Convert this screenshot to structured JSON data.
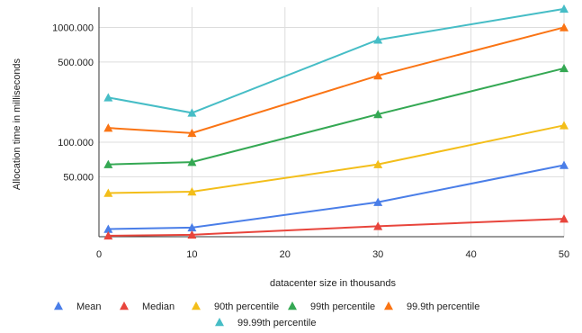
{
  "chart_data": {
    "type": "line",
    "title": "",
    "xlabel": "datacenter size in thousands",
    "ylabel": "Allocation time in milliseconds",
    "x": [
      1,
      10,
      30,
      50
    ],
    "xlim": [
      0,
      50
    ],
    "xticks": [
      "0",
      "10",
      "20",
      "30",
      "40",
      "50"
    ],
    "yscale": "log",
    "ylim": [
      15,
      1500
    ],
    "yticks": [
      {
        "value": 50,
        "label": "50.000"
      },
      {
        "value": 100,
        "label": "100.000"
      },
      {
        "value": 500,
        "label": "500.000"
      },
      {
        "value": 1000,
        "label": "1000.000"
      }
    ],
    "grid": true,
    "legend_position": "bottom",
    "series": [
      {
        "name": "Mean",
        "color": "#4a7ee8",
        "values": [
          17.5,
          18,
          30,
          63
        ]
      },
      {
        "name": "Median",
        "color": "#e8453c",
        "values": [
          15.3,
          15.6,
          18.5,
          21.5
        ]
      },
      {
        "name": "90th percentile",
        "color": "#f3be1a",
        "values": [
          36,
          37,
          64,
          140
        ]
      },
      {
        "name": "99th percentile",
        "color": "#34a853",
        "values": [
          64,
          67,
          175,
          440
        ]
      },
      {
        "name": "99.9th percentile",
        "color": "#fa7414",
        "values": [
          133,
          120,
          380,
          1000
        ]
      },
      {
        "name": "99.99th percentile",
        "color": "#46bdc6",
        "values": [
          245,
          180,
          780,
          1450
        ]
      }
    ]
  }
}
